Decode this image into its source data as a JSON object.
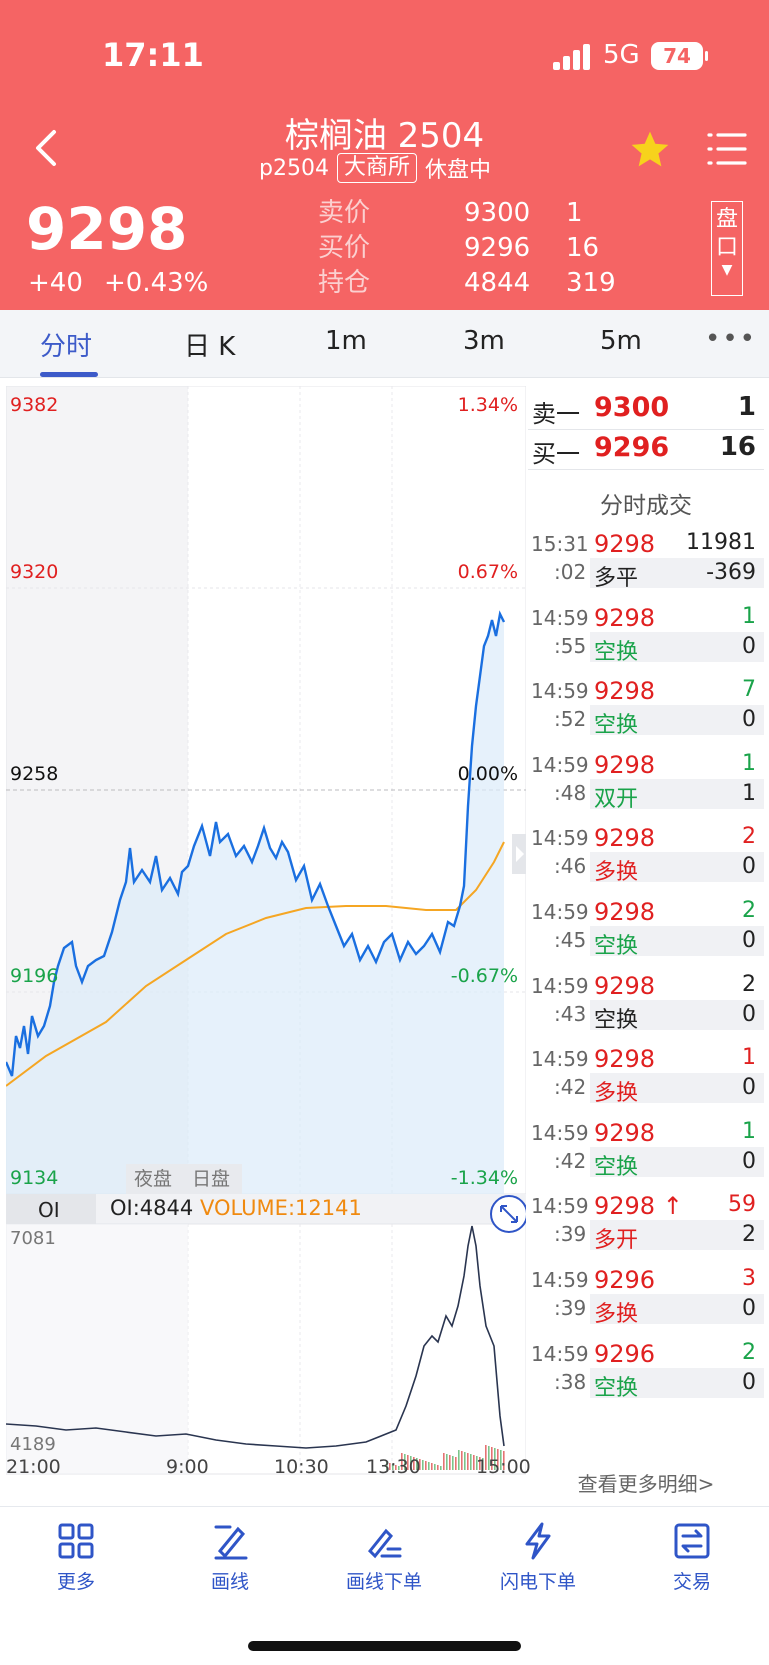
{
  "status_bar": {
    "time": "17:11",
    "network": "5G",
    "battery": "74"
  },
  "header": {
    "title": "棕榈油 2504",
    "code": "p2504",
    "exchange": "大商所",
    "session_status": "休盘中",
    "last_price": "9298",
    "change": "+40",
    "change_pct": "+0.43%",
    "quote_rows": [
      {
        "label": "卖价",
        "price": "9300",
        "qty": "1"
      },
      {
        "label": "买价",
        "price": "9296",
        "qty": "16"
      },
      {
        "label": "持仓",
        "price": "4844",
        "qty": "319"
      }
    ],
    "pankou_label": "盘口"
  },
  "tabs": {
    "items": [
      "分时",
      "日 K",
      "1m",
      "3m",
      "5m"
    ],
    "more": "•••",
    "active": "分时"
  },
  "chart": {
    "price_left": [
      "9382",
      "9320",
      "9258",
      "9196",
      "9134"
    ],
    "pct_right": [
      "1.34%",
      "0.67%",
      "0.00%",
      "-0.67%",
      "-1.34%"
    ],
    "session_labels": [
      "夜盘",
      "日盘"
    ],
    "indicator_tab": "OI",
    "oi_text": "OI:4844",
    "volume_text": "VOLUME:12141",
    "sub_top": "7081",
    "sub_bottom": "4189",
    "time_axis": [
      "21:00",
      "9:00",
      "10:30",
      "13:30",
      "15:00"
    ],
    "colors": {
      "price_line": "#1a6fe0",
      "avg_line": "#f5a623",
      "up": "#e02020",
      "down": "#1aa34a"
    }
  },
  "order_book": [
    {
      "label": "卖一",
      "price": "9300",
      "qty": "1"
    },
    {
      "label": "买一",
      "price": "9296",
      "qty": "16"
    }
  ],
  "ticks_title": "分时成交",
  "ticks": [
    {
      "time1": "15:31",
      "time2": ":02",
      "price": "9298",
      "vol": "11981",
      "vol_color": "black",
      "kind": "多平",
      "kind_color": "black",
      "oi": "-369",
      "arrow": ""
    },
    {
      "time1": "14:59",
      "time2": ":55",
      "price": "9298",
      "vol": "1",
      "vol_color": "green",
      "kind": "空换",
      "kind_color": "green",
      "oi": "0",
      "arrow": ""
    },
    {
      "time1": "14:59",
      "time2": ":52",
      "price": "9298",
      "vol": "7",
      "vol_color": "green",
      "kind": "空换",
      "kind_color": "green",
      "oi": "0",
      "arrow": ""
    },
    {
      "time1": "14:59",
      "time2": ":48",
      "price": "9298",
      "vol": "1",
      "vol_color": "green",
      "kind": "双开",
      "kind_color": "green",
      "oi": "1",
      "arrow": ""
    },
    {
      "time1": "14:59",
      "time2": ":46",
      "price": "9298",
      "vol": "2",
      "vol_color": "red",
      "kind": "多换",
      "kind_color": "red",
      "oi": "0",
      "arrow": ""
    },
    {
      "time1": "14:59",
      "time2": ":45",
      "price": "9298",
      "vol": "2",
      "vol_color": "green",
      "kind": "空换",
      "kind_color": "green",
      "oi": "0",
      "arrow": ""
    },
    {
      "time1": "14:59",
      "time2": ":43",
      "price": "9298",
      "vol": "2",
      "vol_color": "black",
      "kind": "空换",
      "kind_color": "black",
      "oi": "0",
      "arrow": ""
    },
    {
      "time1": "14:59",
      "time2": ":42",
      "price": "9298",
      "vol": "1",
      "vol_color": "red",
      "kind": "多换",
      "kind_color": "red",
      "oi": "0",
      "arrow": ""
    },
    {
      "time1": "14:59",
      "time2": ":42",
      "price": "9298",
      "vol": "1",
      "vol_color": "green",
      "kind": "空换",
      "kind_color": "green",
      "oi": "0",
      "arrow": ""
    },
    {
      "time1": "14:59",
      "time2": ":39",
      "price": "9298",
      "vol": "59",
      "vol_color": "red",
      "kind": "多开",
      "kind_color": "red",
      "oi": "2",
      "arrow": "↑"
    },
    {
      "time1": "14:59",
      "time2": ":39",
      "price": "9296",
      "vol": "3",
      "vol_color": "red",
      "kind": "多换",
      "kind_color": "red",
      "oi": "0",
      "arrow": ""
    },
    {
      "time1": "14:59",
      "time2": ":38",
      "price": "9296",
      "vol": "2",
      "vol_color": "green",
      "kind": "空换",
      "kind_color": "green",
      "oi": "0",
      "arrow": ""
    }
  ],
  "ticks_more": "查看更多明细>",
  "bottom_nav": [
    "更多",
    "画线",
    "画线下单",
    "闪电下单",
    "交易"
  ]
}
